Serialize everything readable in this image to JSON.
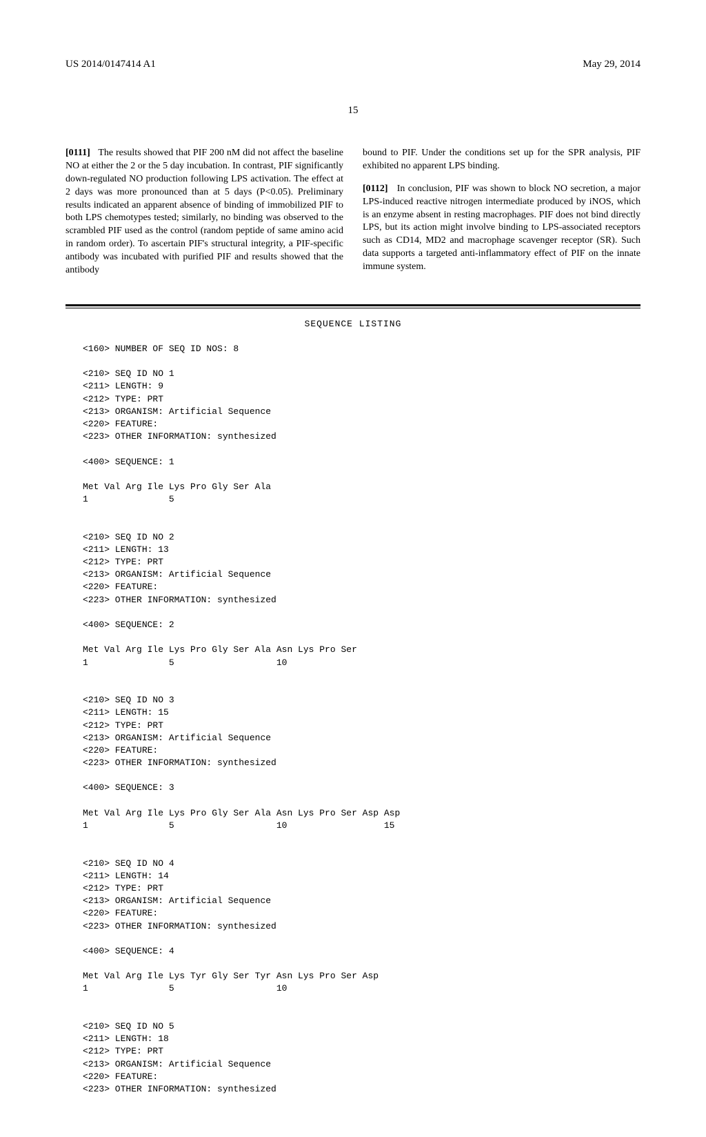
{
  "header": {
    "pub_number": "US 2014/0147414 A1",
    "pub_date": "May 29, 2014"
  },
  "page_number": "15",
  "para111": {
    "num": "[0111]",
    "text": "The results showed that PIF 200 nM did not affect the baseline NO at either the 2 or the 5 day incubation. In contrast, PIF significantly down-regulated NO production following LPS activation. The effect at 2 days was more pronounced than at 5 days (P<0.05). Preliminary results indicated an apparent absence of binding of immobilized PIF to both LPS chemotypes tested; similarly, no binding was observed to the scrambled PIF used as the control (random peptide of same amino acid in random order). To ascertain PIF's structural integrity, a PIF-specific antibody was incubated with purified PIF and results showed that the antibody"
  },
  "para111_cont": "bound to PIF. Under the conditions set up for the SPR analysis, PIF exhibited no apparent LPS binding.",
  "para112": {
    "num": "[0112]",
    "text": "In conclusion, PIF was shown to block NO secretion, a major LPS-induced reactive nitrogen intermediate produced by iNOS, which is an enzyme absent in resting macrophages. PIF does not bind directly LPS, but its action might involve binding to LPS-associated receptors such as CD14, MD2 and macrophage scavenger receptor (SR). Such data supports a targeted anti-inflammatory effect of PIF on the innate immune system."
  },
  "seq_listing_title": "SEQUENCE LISTING",
  "seq_count": "<160> NUMBER OF SEQ ID NOS: 8",
  "seq1_header": "<210> SEQ ID NO 1\n<211> LENGTH: 9\n<212> TYPE: PRT\n<213> ORGANISM: Artificial Sequence\n<220> FEATURE:\n<223> OTHER INFORMATION: synthesized",
  "seq1_marker": "<400> SEQUENCE: 1",
  "seq1_data": "Met Val Arg Ile Lys Pro Gly Ser Ala\n1               5",
  "seq2_header": "<210> SEQ ID NO 2\n<211> LENGTH: 13\n<212> TYPE: PRT\n<213> ORGANISM: Artificial Sequence\n<220> FEATURE:\n<223> OTHER INFORMATION: synthesized",
  "seq2_marker": "<400> SEQUENCE: 2",
  "seq2_data": "Met Val Arg Ile Lys Pro Gly Ser Ala Asn Lys Pro Ser\n1               5                   10",
  "seq3_header": "<210> SEQ ID NO 3\n<211> LENGTH: 15\n<212> TYPE: PRT\n<213> ORGANISM: Artificial Sequence\n<220> FEATURE:\n<223> OTHER INFORMATION: synthesized",
  "seq3_marker": "<400> SEQUENCE: 3",
  "seq3_data": "Met Val Arg Ile Lys Pro Gly Ser Ala Asn Lys Pro Ser Asp Asp\n1               5                   10                  15",
  "seq4_header": "<210> SEQ ID NO 4\n<211> LENGTH: 14\n<212> TYPE: PRT\n<213> ORGANISM: Artificial Sequence\n<220> FEATURE:\n<223> OTHER INFORMATION: synthesized",
  "seq4_marker": "<400> SEQUENCE: 4",
  "seq4_data": "Met Val Arg Ile Lys Tyr Gly Ser Tyr Asn Lys Pro Ser Asp\n1               5                   10",
  "seq5_header": "<210> SEQ ID NO 5\n<211> LENGTH: 18\n<212> TYPE: PRT\n<213> ORGANISM: Artificial Sequence\n<220> FEATURE:\n<223> OTHER INFORMATION: synthesized"
}
